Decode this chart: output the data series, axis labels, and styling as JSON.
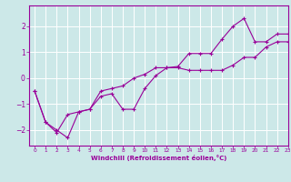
{
  "xlabel": "Windchill (Refroidissement éolien,°C)",
  "ylabel": "",
  "xlim": [
    -0.5,
    23
  ],
  "ylim": [
    -2.6,
    2.8
  ],
  "bg_color": "#cce8e8",
  "line_color": "#990099",
  "xticks": [
    0,
    1,
    2,
    3,
    4,
    5,
    6,
    7,
    8,
    9,
    10,
    11,
    12,
    13,
    14,
    15,
    16,
    17,
    18,
    19,
    20,
    21,
    22,
    23
  ],
  "yticks": [
    -2,
    -1,
    0,
    1,
    2
  ],
  "grid_color": "#ffffff",
  "line1_x": [
    0,
    1,
    2,
    3,
    4,
    5,
    6,
    7,
    8,
    9,
    10,
    11,
    12,
    13,
    14,
    15,
    16,
    17,
    18,
    19,
    20,
    21,
    22,
    23
  ],
  "line1_y": [
    -0.5,
    -1.7,
    -2.0,
    -2.3,
    -1.3,
    -1.2,
    -0.7,
    -0.6,
    -1.2,
    -1.2,
    -0.4,
    0.1,
    0.4,
    0.4,
    0.3,
    0.3,
    0.3,
    0.3,
    0.5,
    0.8,
    0.8,
    1.2,
    1.4,
    1.4
  ],
  "line2_x": [
    0,
    1,
    2,
    3,
    4,
    5,
    6,
    7,
    8,
    9,
    10,
    11,
    12,
    13,
    14,
    15,
    16,
    17,
    18,
    19,
    20,
    21,
    22,
    23
  ],
  "line2_y": [
    -0.5,
    -1.7,
    -2.1,
    -1.4,
    -1.3,
    -1.2,
    -0.5,
    -0.4,
    -0.3,
    0.0,
    0.15,
    0.4,
    0.4,
    0.45,
    0.95,
    0.95,
    0.95,
    1.5,
    2.0,
    2.3,
    1.4,
    1.4,
    1.7,
    1.7
  ]
}
